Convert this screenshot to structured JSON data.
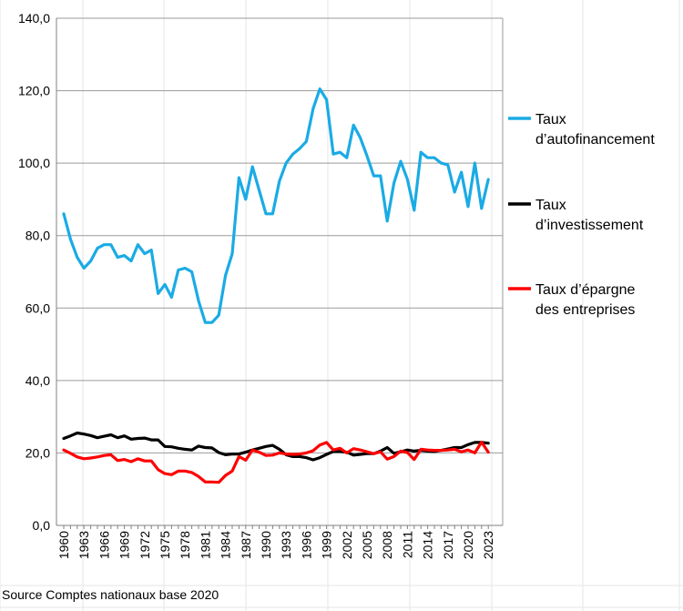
{
  "chart_data": {
    "type": "line",
    "title": "",
    "xlabel": "",
    "ylabel": "",
    "ylim": [
      0,
      140
    ],
    "yticks": [
      "0,0",
      "20,0",
      "40,0",
      "60,0",
      "80,0",
      "100,0",
      "120,0",
      "140,0"
    ],
    "ytick_values": [
      0,
      20,
      40,
      60,
      80,
      100,
      120,
      140
    ],
    "x": [
      1960,
      1961,
      1962,
      1963,
      1964,
      1965,
      1966,
      1967,
      1968,
      1969,
      1970,
      1971,
      1972,
      1973,
      1974,
      1975,
      1976,
      1977,
      1978,
      1979,
      1980,
      1981,
      1982,
      1983,
      1984,
      1985,
      1986,
      1987,
      1988,
      1989,
      1990,
      1991,
      1992,
      1993,
      1994,
      1995,
      1996,
      1997,
      1998,
      1999,
      2000,
      2001,
      2002,
      2003,
      2004,
      2005,
      2006,
      2007,
      2008,
      2009,
      2010,
      2011,
      2012,
      2013,
      2014,
      2015,
      2016,
      2017,
      2018,
      2019,
      2020,
      2021,
      2022,
      2023
    ],
    "xtick_labels": [
      "1960",
      "1963",
      "1966",
      "1969",
      "1972",
      "1975",
      "1978",
      "1981",
      "1984",
      "1987",
      "1990",
      "1993",
      "1996",
      "1999",
      "2002",
      "2005",
      "2008",
      "2011",
      "2014",
      "2017",
      "2020",
      "2023"
    ],
    "legend_position": "right",
    "grid": true,
    "series": [
      {
        "name_line1": "Taux",
        "name_line2": "d’autofinancement",
        "color": "#1AABE5",
        "values": [
          86,
          79,
          74,
          71,
          73,
          76.5,
          77.5,
          77.5,
          74,
          74.5,
          73,
          77.5,
          75,
          76,
          64,
          66.5,
          63,
          70.5,
          71,
          70,
          62,
          56,
          56,
          58,
          69,
          75,
          96,
          90,
          99,
          92.5,
          86,
          86,
          95,
          100,
          102.5,
          104,
          106,
          115,
          120.5,
          117.5,
          102.5,
          103,
          101.5,
          110.5,
          107,
          102,
          96.5,
          96.5,
          84,
          94.5,
          100.5,
          95.5,
          87,
          103,
          101.5,
          101.5,
          100,
          99.5,
          92,
          97.5,
          88,
          100,
          87.5,
          95.5
        ]
      },
      {
        "name_line1": "Taux",
        "name_line2": "d’investissement",
        "color": "#000000",
        "values": [
          24,
          24.7,
          25.5,
          25.2,
          24.8,
          24.2,
          24.6,
          25,
          24.2,
          24.7,
          23.8,
          24,
          24.1,
          23.6,
          23.6,
          21.8,
          21.7,
          21.3,
          21,
          20.8,
          21.9,
          21.5,
          21.4,
          20.1,
          19.5,
          19.7,
          19.7,
          20.2,
          20.8,
          21.3,
          21.8,
          22.1,
          21,
          19.5,
          19,
          19,
          18.7,
          18.1,
          18.7,
          19.6,
          20.4,
          20.4,
          20.2,
          19.4,
          19.6,
          19.8,
          19.8,
          20.5,
          21.5,
          19.9,
          20.3,
          20.8,
          20.5,
          20.7,
          20.5,
          20.4,
          20.7,
          21.1,
          21.5,
          21.5,
          22.3,
          22.9,
          22.9,
          22.7
        ]
      },
      {
        "name_line1": "Taux d’épargne",
        "name_line2": "des entreprises",
        "color": "#FF0000",
        "values": [
          20.8,
          19.9,
          18.9,
          18.4,
          18.6,
          18.9,
          19.3,
          19.5,
          17.9,
          18.2,
          17.6,
          18.4,
          17.8,
          17.8,
          15.4,
          14.3,
          14,
          15,
          15,
          14.6,
          13.5,
          12,
          12,
          11.9,
          13.8,
          15,
          19,
          18,
          20.8,
          20.2,
          19.3,
          19.4,
          20,
          19.7,
          19.6,
          19.7,
          20,
          20.6,
          22.2,
          22.9,
          20.8,
          21.3,
          20,
          21.2,
          20.8,
          20.3,
          19.8,
          20.3,
          18.3,
          19,
          20.5,
          20.1,
          18.2,
          21,
          20.8,
          20.7,
          20.7,
          20.8,
          21,
          20.3,
          20.8,
          20,
          23,
          20.2
        ]
      }
    ]
  },
  "footer": {
    "source": "Source Comptes nationaux base 2020"
  }
}
